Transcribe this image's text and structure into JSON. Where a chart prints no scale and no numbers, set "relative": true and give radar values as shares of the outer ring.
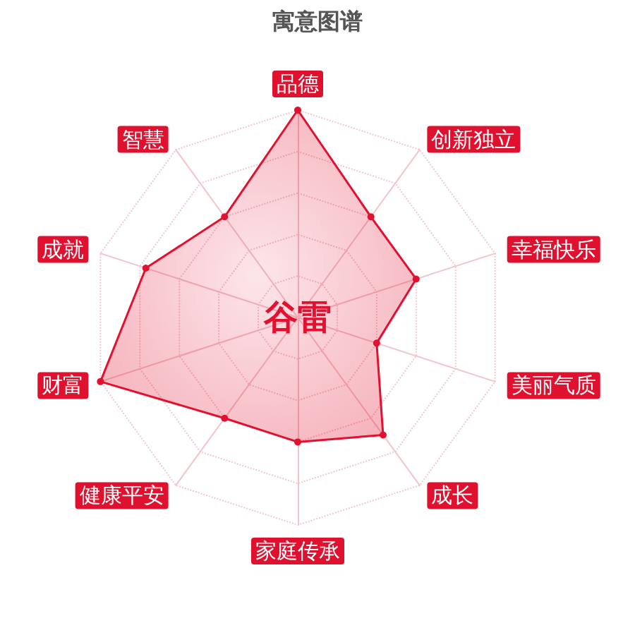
{
  "chart_data": {
    "type": "radar",
    "title": "寓意图谱",
    "categories": [
      "品德",
      "创新独立",
      "幸福快乐",
      "美丽气质",
      "成长",
      "家庭传承",
      "健康平安",
      "财富",
      "成就",
      "智慧"
    ],
    "series": [
      {
        "color": "#e3102f",
        "values": [
          1,
          0.6,
          0.6,
          0.4,
          0.7,
          0.6,
          0.6,
          1,
          0.77,
          0.6
        ]
      }
    ],
    "relative": true,
    "grid": true,
    "marker": "circle",
    "annotations": [
      "谷雷"
    ]
  }
}
